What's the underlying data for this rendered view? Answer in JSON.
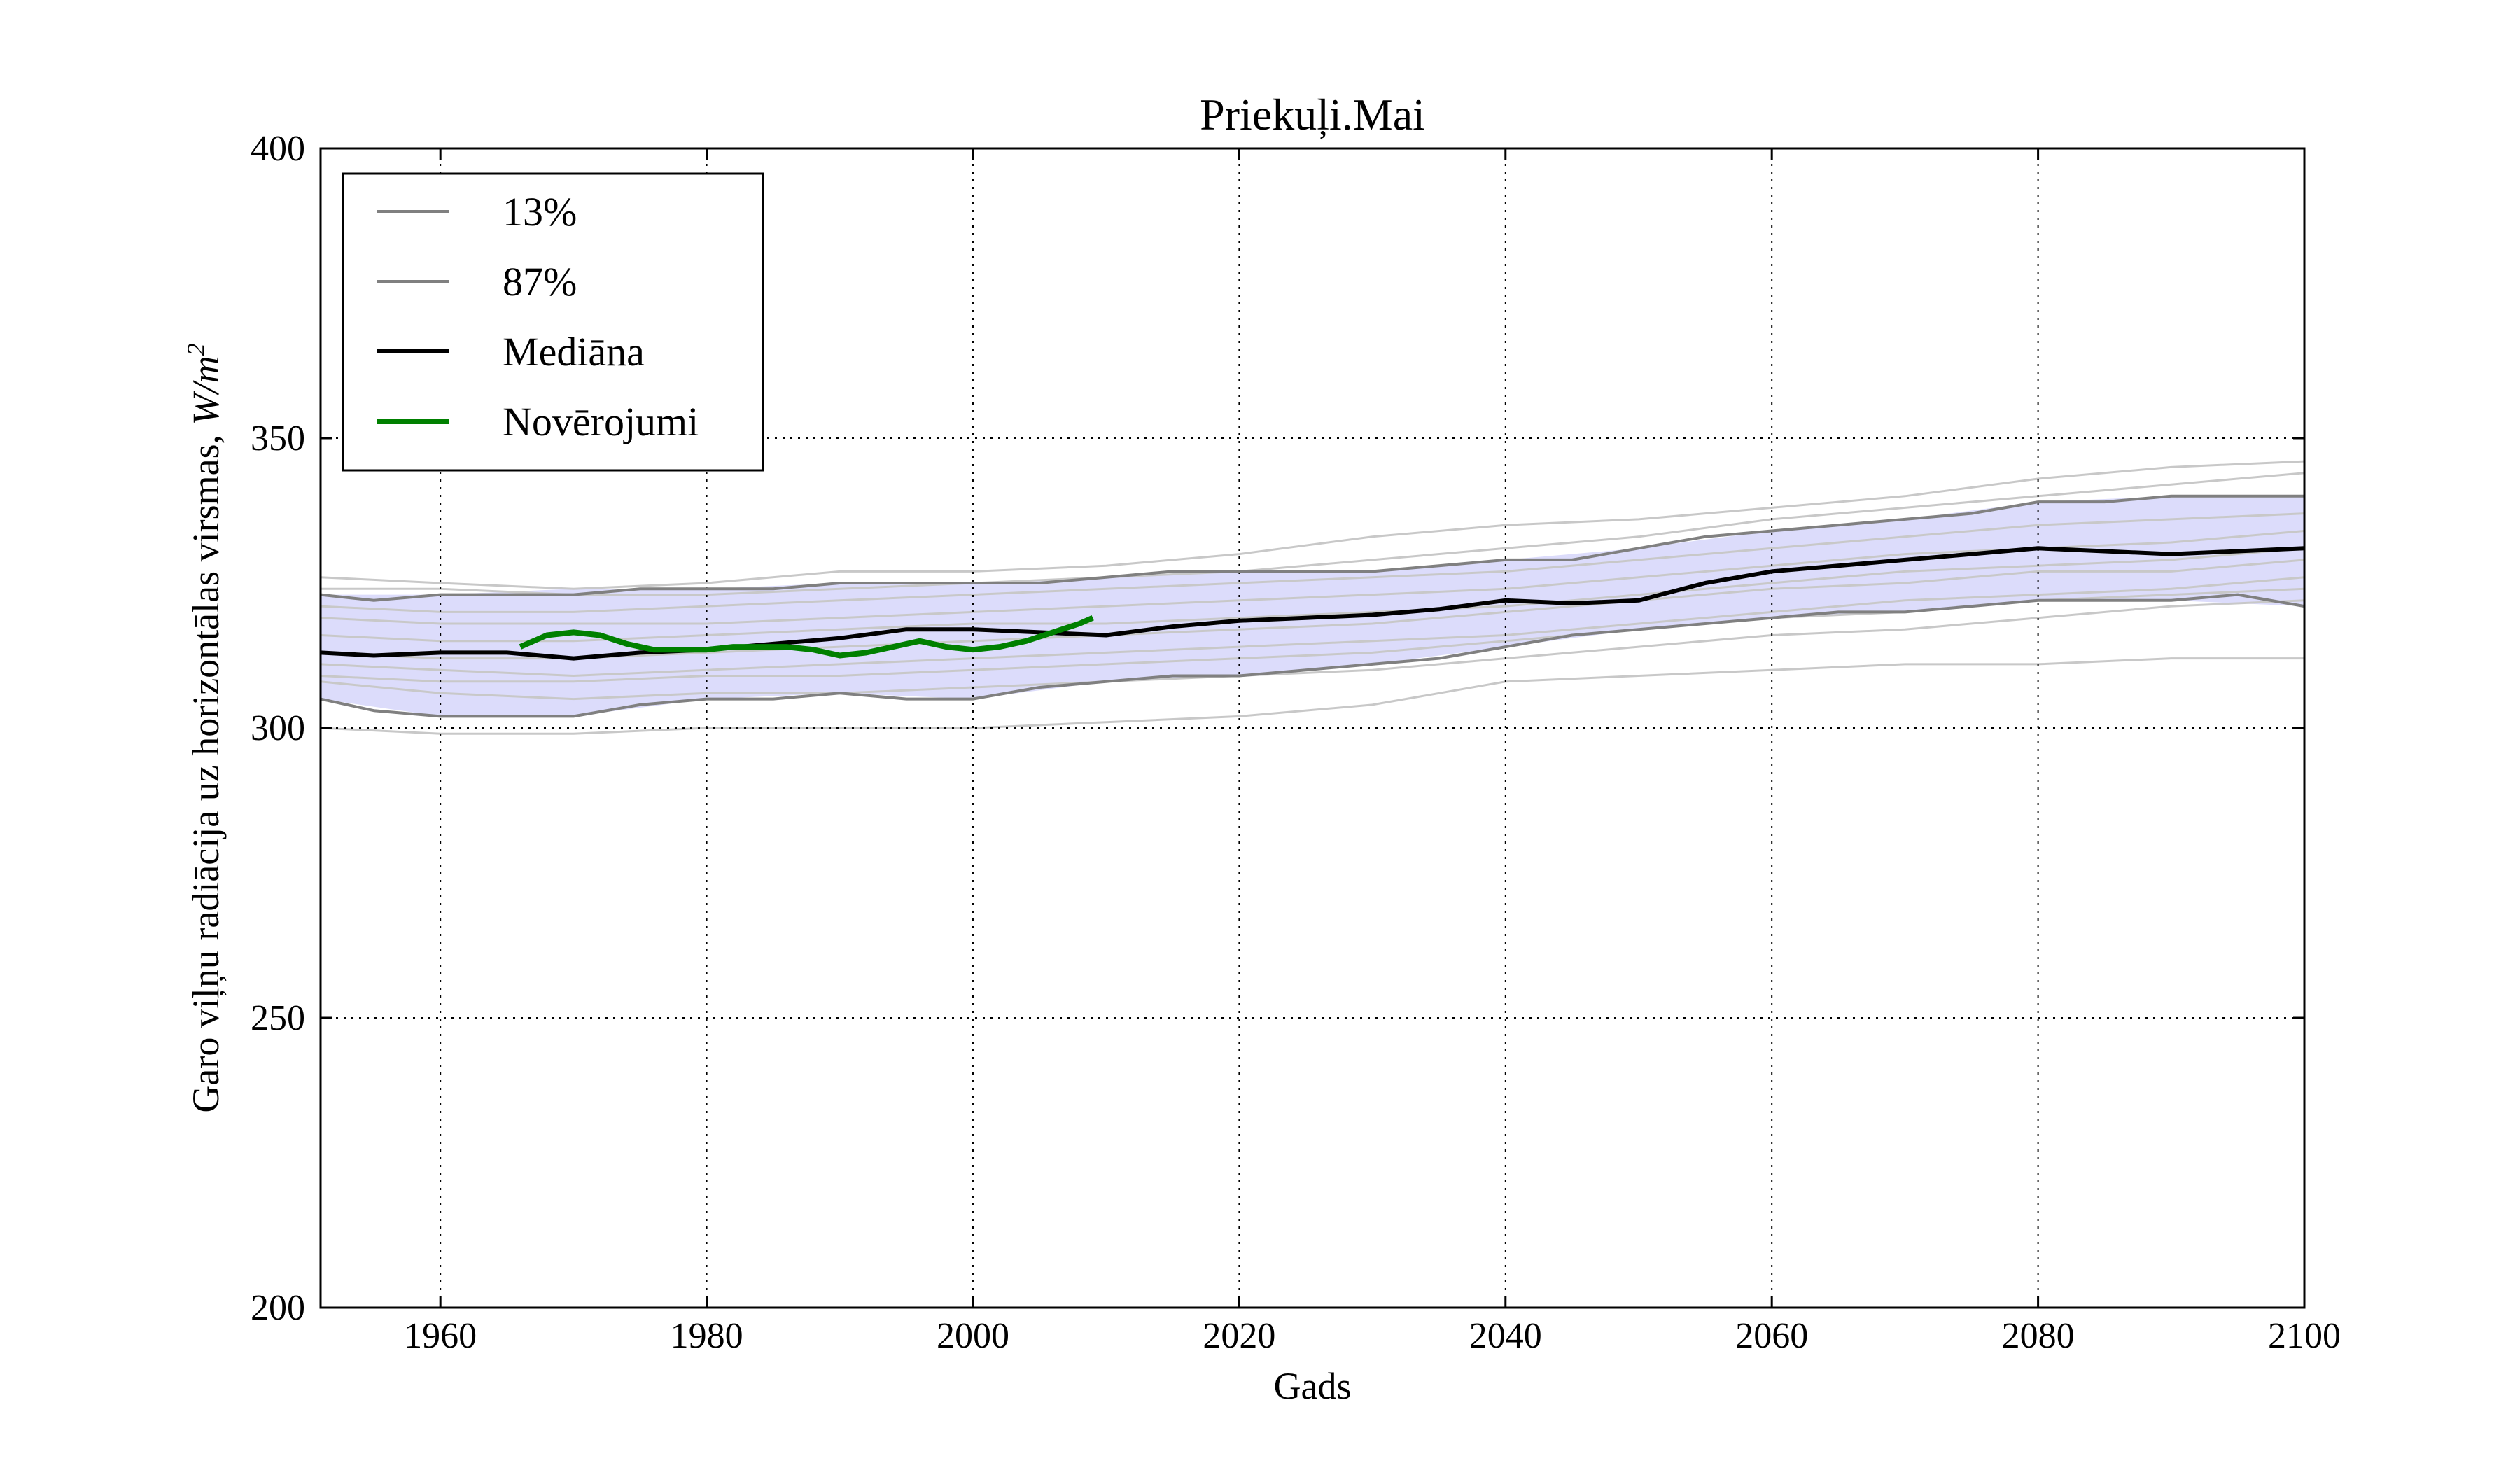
{
  "chart_data": {
    "type": "line",
    "title": "Priekuļi.Mai",
    "xlabel": "Gads",
    "ylabel_text": "Garo viļņu radiācija uz horizontālas virsmas, ",
    "ylabel_unit": "W/m",
    "ylabel_unit_exp": "2",
    "xlim": [
      1951,
      2100
    ],
    "ylim": [
      200,
      400
    ],
    "xticks": [
      1960,
      1980,
      2000,
      2020,
      2040,
      2060,
      2080,
      2100
    ],
    "yticks": [
      200,
      250,
      300,
      350,
      400
    ],
    "grid": true,
    "legend_position": "top-left",
    "band": {
      "color": "#dcdcfb",
      "x": [
        1951,
        1960,
        1970,
        1980,
        1990,
        2000,
        2010,
        2020,
        2030,
        2040,
        2050,
        2060,
        2070,
        2080,
        2090,
        2100
      ],
      "lower": [
        305,
        302,
        302,
        305,
        306,
        305,
        308,
        309,
        311,
        314,
        317,
        319,
        320,
        322,
        322,
        321
      ],
      "upper": [
        323,
        323,
        324,
        324,
        325,
        325,
        326,
        327,
        327,
        329,
        331,
        334,
        336,
        339,
        340,
        340
      ]
    },
    "series": [
      {
        "name": "13%",
        "color": "#808080",
        "width": 4,
        "x": [
          1951,
          1955,
          1960,
          1965,
          1970,
          1975,
          1980,
          1985,
          1990,
          1995,
          2000,
          2005,
          2010,
          2015,
          2020,
          2025,
          2030,
          2035,
          2040,
          2045,
          2050,
          2055,
          2060,
          2065,
          2070,
          2075,
          2080,
          2085,
          2090,
          2095,
          2100
        ],
        "y": [
          305,
          303,
          302,
          302,
          302,
          304,
          305,
          305,
          306,
          305,
          305,
          307,
          308,
          309,
          309,
          310,
          311,
          312,
          314,
          316,
          317,
          318,
          319,
          320,
          320,
          321,
          322,
          322,
          322,
          323,
          321
        ]
      },
      {
        "name": "87%",
        "color": "#808080",
        "width": 4,
        "x": [
          1951,
          1955,
          1960,
          1965,
          1970,
          1975,
          1980,
          1985,
          1990,
          1995,
          2000,
          2005,
          2010,
          2015,
          2020,
          2025,
          2030,
          2035,
          2040,
          2045,
          2050,
          2055,
          2060,
          2065,
          2070,
          2075,
          2080,
          2085,
          2090,
          2095,
          2100
        ],
        "y": [
          323,
          322,
          323,
          323,
          323,
          324,
          324,
          324,
          325,
          325,
          325,
          325,
          326,
          327,
          327,
          327,
          327,
          328,
          329,
          329,
          331,
          333,
          334,
          335,
          336,
          337,
          339,
          339,
          340,
          340,
          340
        ]
      },
      {
        "name": "Mediāna",
        "color": "#000000",
        "width": 6,
        "x": [
          1951,
          1955,
          1960,
          1965,
          1970,
          1975,
          1980,
          1985,
          1990,
          1995,
          2000,
          2005,
          2010,
          2015,
          2020,
          2025,
          2030,
          2035,
          2040,
          2045,
          2050,
          2055,
          2060,
          2065,
          2070,
          2075,
          2080,
          2085,
          2090,
          2095,
          2100
        ],
        "y": [
          313,
          312.5,
          313,
          313,
          312,
          313,
          313.5,
          314.5,
          315.5,
          317,
          317,
          316.5,
          316,
          317.5,
          318.5,
          319,
          319.5,
          320.5,
          322,
          321.5,
          322,
          325,
          327,
          328,
          329,
          330,
          331,
          330.5,
          330,
          330.5,
          331
        ]
      },
      {
        "name": "Novērojumi",
        "color": "#008000",
        "width": 8,
        "x": [
          1966,
          1968,
          1970,
          1972,
          1974,
          1976,
          1978,
          1980,
          1982,
          1984,
          1986,
          1988,
          1990,
          1992,
          1994,
          1996,
          1998,
          2000,
          2002,
          2004,
          2006,
          2008,
          2009
        ],
        "y": [
          314,
          316,
          316.5,
          316,
          314.5,
          313.5,
          313.5,
          313.5,
          314,
          314,
          314,
          313.5,
          312.5,
          313,
          314,
          315,
          314,
          313.5,
          314,
          315,
          316.5,
          318,
          319
        ]
      }
    ],
    "members": {
      "color": "#c8c8c8",
      "x": [
        1951,
        1960,
        1970,
        1980,
        1990,
        2000,
        2010,
        2020,
        2030,
        2040,
        2050,
        2060,
        2070,
        2080,
        2090,
        2100
      ],
      "lines": [
        [
          326,
          325,
          324,
          325,
          327,
          327,
          328,
          330,
          333,
          335,
          336,
          338,
          340,
          343,
          345,
          346
        ],
        [
          324,
          324,
          323,
          323,
          324,
          325,
          326,
          327,
          329,
          331,
          333,
          336,
          338,
          340,
          342,
          344
        ],
        [
          321,
          320,
          320,
          321,
          322,
          323,
          324,
          325,
          326,
          327,
          329,
          331,
          333,
          335,
          336,
          337
        ],
        [
          319,
          318,
          318,
          318,
          319,
          320,
          321,
          322,
          323,
          324,
          326,
          328,
          330,
          331,
          332,
          334
        ],
        [
          316,
          315,
          315,
          316,
          317,
          318,
          318,
          319,
          320,
          321,
          323,
          325,
          327,
          328,
          329,
          331
        ],
        [
          313,
          312,
          312,
          313,
          314,
          315,
          316,
          317,
          318,
          320,
          322,
          324,
          325,
          327,
          327,
          329
        ],
        [
          311,
          310,
          309,
          310,
          311,
          312,
          313,
          314,
          315,
          316,
          318,
          320,
          322,
          323,
          324,
          326
        ],
        [
          309,
          308,
          308,
          309,
          309,
          310,
          311,
          312,
          313,
          315,
          317,
          319,
          320,
          322,
          323,
          324
        ],
        [
          308,
          306,
          305,
          306,
          306,
          307,
          308,
          309,
          310,
          312,
          314,
          316,
          317,
          319,
          321,
          322
        ],
        [
          300,
          299,
          299,
          300,
          300,
          300,
          301,
          302,
          304,
          308,
          309,
          310,
          311,
          311,
          312,
          312
        ]
      ]
    }
  }
}
